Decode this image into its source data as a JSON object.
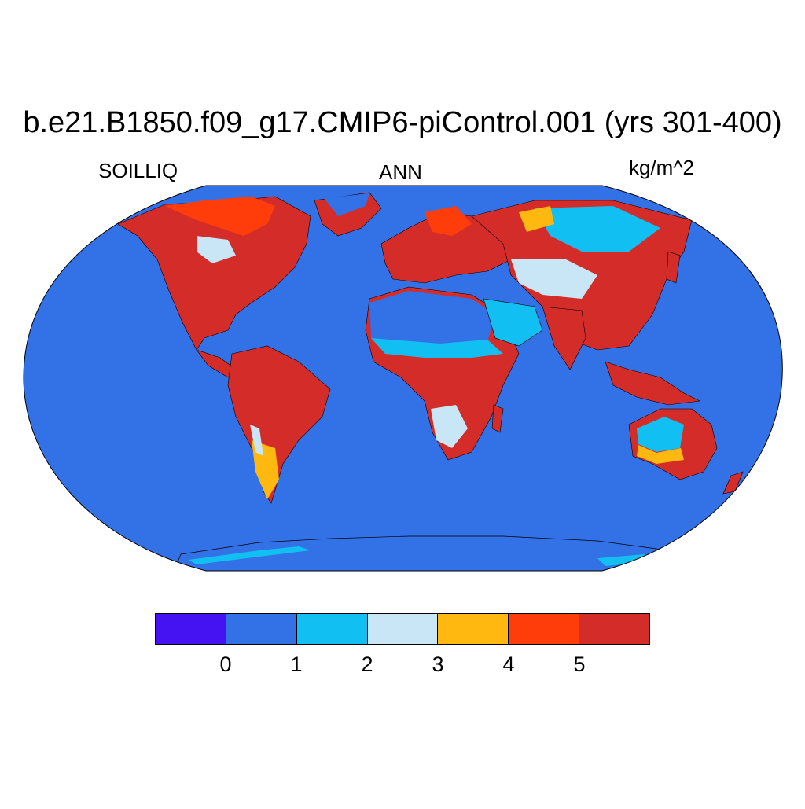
{
  "map": {
    "title": "b.e21.B1850.f09_g17.CMIP6-piControl.001 (yrs 301-400)",
    "variable": "SOILLIQ",
    "season": "ANN",
    "units": "kg/m^2",
    "projection": "robinson",
    "ocean_color": "#3371e6"
  },
  "colorbar": {
    "colors": [
      "#4512f2",
      "#3371e6",
      "#12bff2",
      "#c8e6f6",
      "#ffb80f",
      "#ff3d0b",
      "#d42c29"
    ],
    "labels": [
      "0",
      "1",
      "2",
      "3",
      "4",
      "5"
    ]
  },
  "icons": {
    "map": "world-map-icon"
  }
}
